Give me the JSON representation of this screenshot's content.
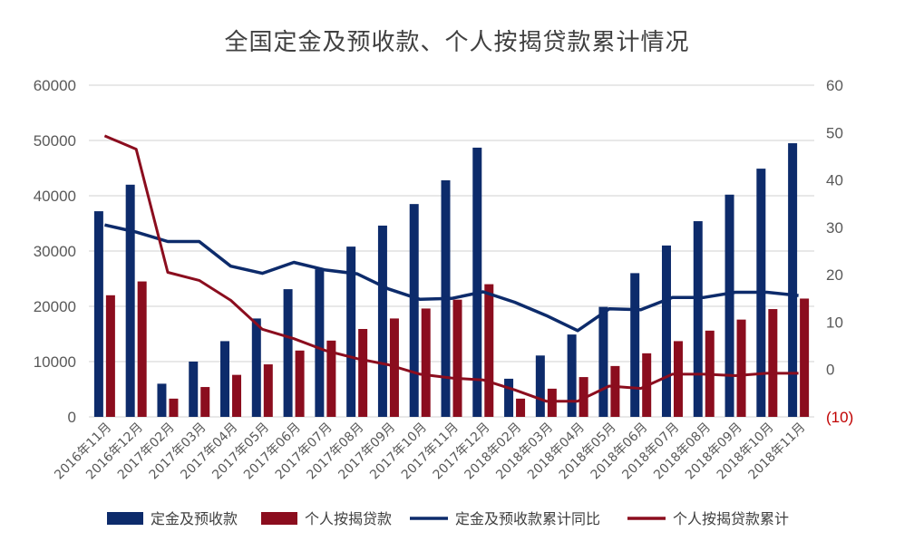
{
  "chart_data": {
    "type": "bar",
    "title": "全国定金及预收款、个人按揭贷款累计情况",
    "categories": [
      "2016年11月",
      "2016年12月",
      "2017年02月",
      "2017年03月",
      "2017年04月",
      "2017年05月",
      "2017年06月",
      "2017年07月",
      "2017年08月",
      "2017年09月",
      "2017年10月",
      "2017年11月",
      "2017年12月",
      "2018年02月",
      "2018年03月",
      "2018年04月",
      "2018年05月",
      "2018年06月",
      "2018年07月",
      "2018年08月",
      "2018年09月",
      "2018年10月",
      "2018年11月"
    ],
    "y_left": {
      "min": 0,
      "max": 60000,
      "ticks": [
        "0",
        "10000",
        "20000",
        "30000",
        "40000",
        "50000",
        "60000"
      ]
    },
    "y_right": {
      "min": -10,
      "max": 60,
      "ticks": [
        "(10)",
        "0",
        "10",
        "20",
        "30",
        "40",
        "50",
        "60"
      ]
    },
    "grid": true,
    "legend_position": "bottom",
    "series": [
      {
        "name": "定金及预收款",
        "type": "bar",
        "axis": "left",
        "color": "#0d2b6b",
        "values": [
          37200,
          42000,
          6000,
          10000,
          13700,
          17800,
          23100,
          26700,
          30800,
          34600,
          38500,
          42800,
          48700,
          6900,
          11100,
          14900,
          19900,
          26000,
          31000,
          35400,
          40200,
          44900,
          49500
        ]
      },
      {
        "name": "个人按揭贷款",
        "type": "bar",
        "axis": "left",
        "color": "#8b0d1e",
        "values": [
          22000,
          24500,
          3300,
          5400,
          7600,
          9500,
          12000,
          13800,
          15900,
          17800,
          19600,
          21200,
          24000,
          3300,
          5100,
          7200,
          9200,
          11500,
          13700,
          15600,
          17600,
          19500,
          21400
        ]
      },
      {
        "name": "定金及预收款累计同比",
        "type": "line",
        "axis": "right",
        "color": "#0d2b6b",
        "values": [
          30.5,
          29,
          27,
          27,
          21.8,
          20.3,
          22.6,
          21,
          20.2,
          17,
          14.8,
          15,
          16.4,
          14.2,
          11.4,
          8.2,
          12.8,
          12.6,
          15.2,
          15.2,
          16.3,
          16.3,
          15.6
        ]
      },
      {
        "name": "个人按揭贷款累计",
        "type": "line",
        "axis": "right",
        "color": "#8b0d1e",
        "values": [
          49.3,
          46.5,
          20.5,
          18.8,
          14.6,
          8.5,
          6.5,
          4,
          2.3,
          1,
          -1,
          -1.8,
          -2.2,
          -4.3,
          -6.7,
          -6.7,
          -3.5,
          -4,
          -1,
          -1,
          -1.3,
          -0.8,
          -0.8
        ]
      }
    ]
  }
}
